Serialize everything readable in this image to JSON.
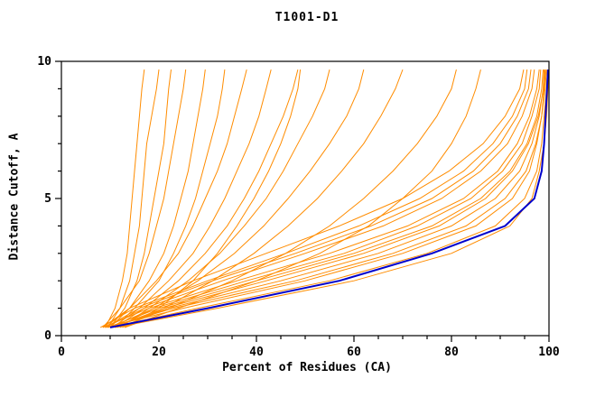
{
  "chart_data": {
    "type": "line",
    "title": "T1001-D1",
    "xlabel": "Percent of Residues (CA)",
    "ylabel": "Distance Cutoff, A",
    "xlim": [
      0,
      100
    ],
    "ylim": [
      0,
      10
    ],
    "x_ticks": [
      0,
      20,
      40,
      60,
      80,
      100
    ],
    "x_minor_step": 5,
    "y_ticks": [
      0,
      5,
      10
    ],
    "y_minor_step": 1,
    "grid": false,
    "legend": "none",
    "colors": {
      "model_lines": "#FF8C00",
      "reference_line": "#0000CC",
      "axis": "#000000",
      "background": "#FFFFFF"
    },
    "y_samples": [
      0.3,
      1,
      2,
      3,
      4,
      5,
      6,
      7,
      8,
      9,
      9.7
    ],
    "reference_series": {
      "name": "reference-model",
      "x": [
        10,
        30,
        57,
        76,
        91,
        97,
        98.5,
        99,
        99.3,
        99.6,
        99.8
      ]
    },
    "model_series": [
      {
        "x": [
          9,
          11,
          12.5,
          13.5,
          14,
          14.5,
          15,
          15.5,
          16,
          16.5,
          17
        ]
      },
      {
        "x": [
          9.5,
          12,
          14,
          15,
          16,
          16.5,
          17,
          17.5,
          18.5,
          19.5,
          20
        ]
      },
      {
        "x": [
          10,
          13,
          15.5,
          17,
          18,
          19,
          20,
          21,
          21.5,
          22,
          22.5
        ]
      },
      {
        "x": [
          8.5,
          12,
          16,
          18,
          19.5,
          21,
          22,
          23,
          24,
          25,
          25.5
        ]
      },
      {
        "x": [
          10,
          14,
          18,
          21,
          23,
          24.5,
          26,
          27,
          28,
          29,
          29.5
        ]
      },
      {
        "x": [
          11,
          15,
          20,
          23,
          25.5,
          27.5,
          29,
          30.5,
          32,
          33,
          33.5
        ]
      },
      {
        "x": [
          9,
          14,
          19.5,
          24,
          27,
          29.5,
          32,
          34,
          35.5,
          37,
          38
        ]
      },
      {
        "x": [
          10.5,
          16,
          22,
          27,
          30.5,
          33.5,
          36,
          38.5,
          40.5,
          42,
          43
        ]
      },
      {
        "x": [
          11,
          17,
          24,
          29.5,
          34,
          37.5,
          40.5,
          43,
          45.5,
          47.5,
          48.5
        ]
      },
      {
        "x": [
          12,
          18,
          26,
          32.5,
          37.5,
          42,
          45.5,
          48.5,
          51.5,
          54,
          55
        ]
      },
      {
        "x": [
          11.5,
          19,
          28,
          35.5,
          41.5,
          46.5,
          51,
          55,
          58.5,
          61,
          62
        ]
      },
      {
        "x": [
          12.5,
          21,
          31,
          39.5,
          46.5,
          52.5,
          57.5,
          62,
          65.5,
          68.5,
          70
        ]
      },
      {
        "x": [
          13,
          20,
          27,
          32,
          36,
          39.5,
          42.5,
          45,
          47,
          48.5,
          49
        ]
      },
      {
        "x": [
          12,
          22,
          35,
          46,
          55,
          62,
          68,
          73,
          77,
          80,
          81
        ]
      },
      {
        "x": [
          13,
          24,
          40,
          53,
          63,
          70,
          76,
          80,
          83,
          85,
          86
        ]
      },
      {
        "x": [
          10,
          28,
          55,
          75,
          89,
          95,
          97.5,
          98.5,
          99,
          99.5,
          99.7
        ]
      },
      {
        "x": [
          11,
          32,
          60,
          80,
          92,
          96.5,
          98,
          99,
          99.5,
          99.8,
          100
        ]
      },
      {
        "x": [
          9,
          25,
          50,
          70,
          85,
          92.5,
          96,
          97.5,
          98.5,
          99,
          99.3
        ]
      },
      {
        "x": [
          10,
          22,
          45,
          65,
          80,
          89,
          94,
          96.5,
          98,
          98.8,
          99
        ]
      },
      {
        "x": [
          9.5,
          20,
          40,
          60,
          76,
          86,
          92,
          95.5,
          97.5,
          98.5,
          98.8
        ]
      },
      {
        "x": [
          8.5,
          18,
          36,
          55,
          71,
          82.5,
          89.5,
          93.5,
          96,
          97.5,
          98
        ]
      },
      {
        "x": [
          9,
          17,
          33,
          50,
          66,
          78,
          86,
          91.5,
          94.5,
          96.5,
          97
        ]
      },
      {
        "x": [
          10,
          19,
          38,
          58,
          73,
          84,
          90.5,
          94.5,
          96.5,
          98,
          98.3
        ]
      },
      {
        "x": [
          8,
          15,
          30,
          46,
          61,
          73.5,
          82.5,
          88.5,
          92.5,
          95,
          95.5
        ]
      },
      {
        "x": [
          9,
          16,
          31,
          48,
          63.5,
          76,
          84.5,
          90,
          93.5,
          95.8,
          96.3
        ]
      },
      {
        "x": [
          10.5,
          21,
          42,
          62,
          77.5,
          87,
          92.5,
          95.8,
          97.8,
          98.9,
          99.2
        ]
      },
      {
        "x": [
          8.5,
          14,
          27,
          42,
          57,
          70,
          79.5,
          86.5,
          91,
          94,
          94.8
        ]
      },
      {
        "x": [
          9.5,
          23,
          48,
          68,
          83,
          91,
          95.3,
          97.3,
          98.5,
          99.2,
          99.5
        ]
      }
    ]
  }
}
